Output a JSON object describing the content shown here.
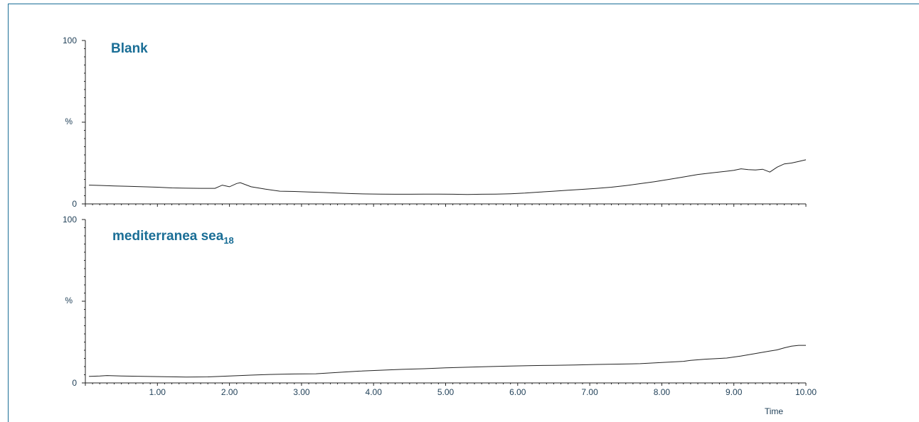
{
  "chart_data": {
    "type": "line",
    "x_axis": {
      "label": "Time",
      "ticks": [
        "1.00",
        "2.00",
        "3.00",
        "4.00",
        "5.00",
        "6.00",
        "7.00",
        "8.00",
        "9.00",
        "10.00"
      ],
      "range": [
        0,
        10
      ]
    },
    "y_axis": {
      "label": "%",
      "ticks": [
        "0",
        "100"
      ],
      "range": [
        0,
        100
      ]
    },
    "grid": false,
    "panels": [
      {
        "title": "Blank",
        "series": {
          "x": [
            0.05,
            0.2,
            0.4,
            0.6,
            0.8,
            1.0,
            1.2,
            1.4,
            1.6,
            1.8,
            1.9,
            2.0,
            2.1,
            2.15,
            2.3,
            2.5,
            2.7,
            2.9,
            3.1,
            3.3,
            3.5,
            3.7,
            3.9,
            4.1,
            4.3,
            4.5,
            4.7,
            4.9,
            5.1,
            5.3,
            5.5,
            5.7,
            5.9,
            6.1,
            6.3,
            6.5,
            6.7,
            6.9,
            7.1,
            7.3,
            7.5,
            7.7,
            7.9,
            8.1,
            8.3,
            8.5,
            8.7,
            8.9,
            9.0,
            9.1,
            9.2,
            9.3,
            9.4,
            9.5,
            9.6,
            9.7,
            9.8,
            9.9,
            10.0
          ],
          "y": [
            11.5,
            11.3,
            11.0,
            10.8,
            10.5,
            10.2,
            9.8,
            9.6,
            9.5,
            9.5,
            11.5,
            10.5,
            12.5,
            13.0,
            10.5,
            9.0,
            7.8,
            7.6,
            7.3,
            7.0,
            6.6,
            6.3,
            6.1,
            6.0,
            5.9,
            5.9,
            6.0,
            6.0,
            5.9,
            5.8,
            5.9,
            6.0,
            6.2,
            6.6,
            7.2,
            7.8,
            8.4,
            8.9,
            9.5,
            10.2,
            11.2,
            12.4,
            13.6,
            15.0,
            16.5,
            18.0,
            19.0,
            20.0,
            20.5,
            21.5,
            21.0,
            20.8,
            21.2,
            19.5,
            22.5,
            24.5,
            25.0,
            26.0,
            27.0
          ]
        }
      },
      {
        "title": "mediterranea sea",
        "title_subscript": "18",
        "series": {
          "x": [
            0.05,
            0.2,
            0.3,
            0.5,
            0.8,
            1.1,
            1.4,
            1.7,
            2.0,
            2.3,
            2.6,
            2.9,
            3.2,
            3.5,
            3.8,
            4.1,
            4.4,
            4.7,
            5.0,
            5.3,
            5.6,
            5.9,
            6.2,
            6.5,
            6.8,
            7.1,
            7.4,
            7.7,
            8.0,
            8.3,
            8.4,
            8.6,
            8.9,
            9.1,
            9.3,
            9.5,
            9.6,
            9.7,
            9.8,
            9.9,
            10.0
          ],
          "y": [
            4.0,
            4.2,
            4.5,
            4.2,
            4.0,
            3.8,
            3.6,
            3.7,
            4.2,
            4.8,
            5.2,
            5.5,
            5.6,
            6.4,
            7.2,
            7.8,
            8.3,
            8.7,
            9.2,
            9.6,
            10.0,
            10.3,
            10.6,
            10.8,
            11.0,
            11.3,
            11.5,
            11.8,
            12.5,
            13.2,
            13.8,
            14.5,
            15.2,
            16.5,
            18.0,
            19.5,
            20.2,
            21.5,
            22.5,
            23.0,
            23.0
          ]
        }
      }
    ]
  }
}
